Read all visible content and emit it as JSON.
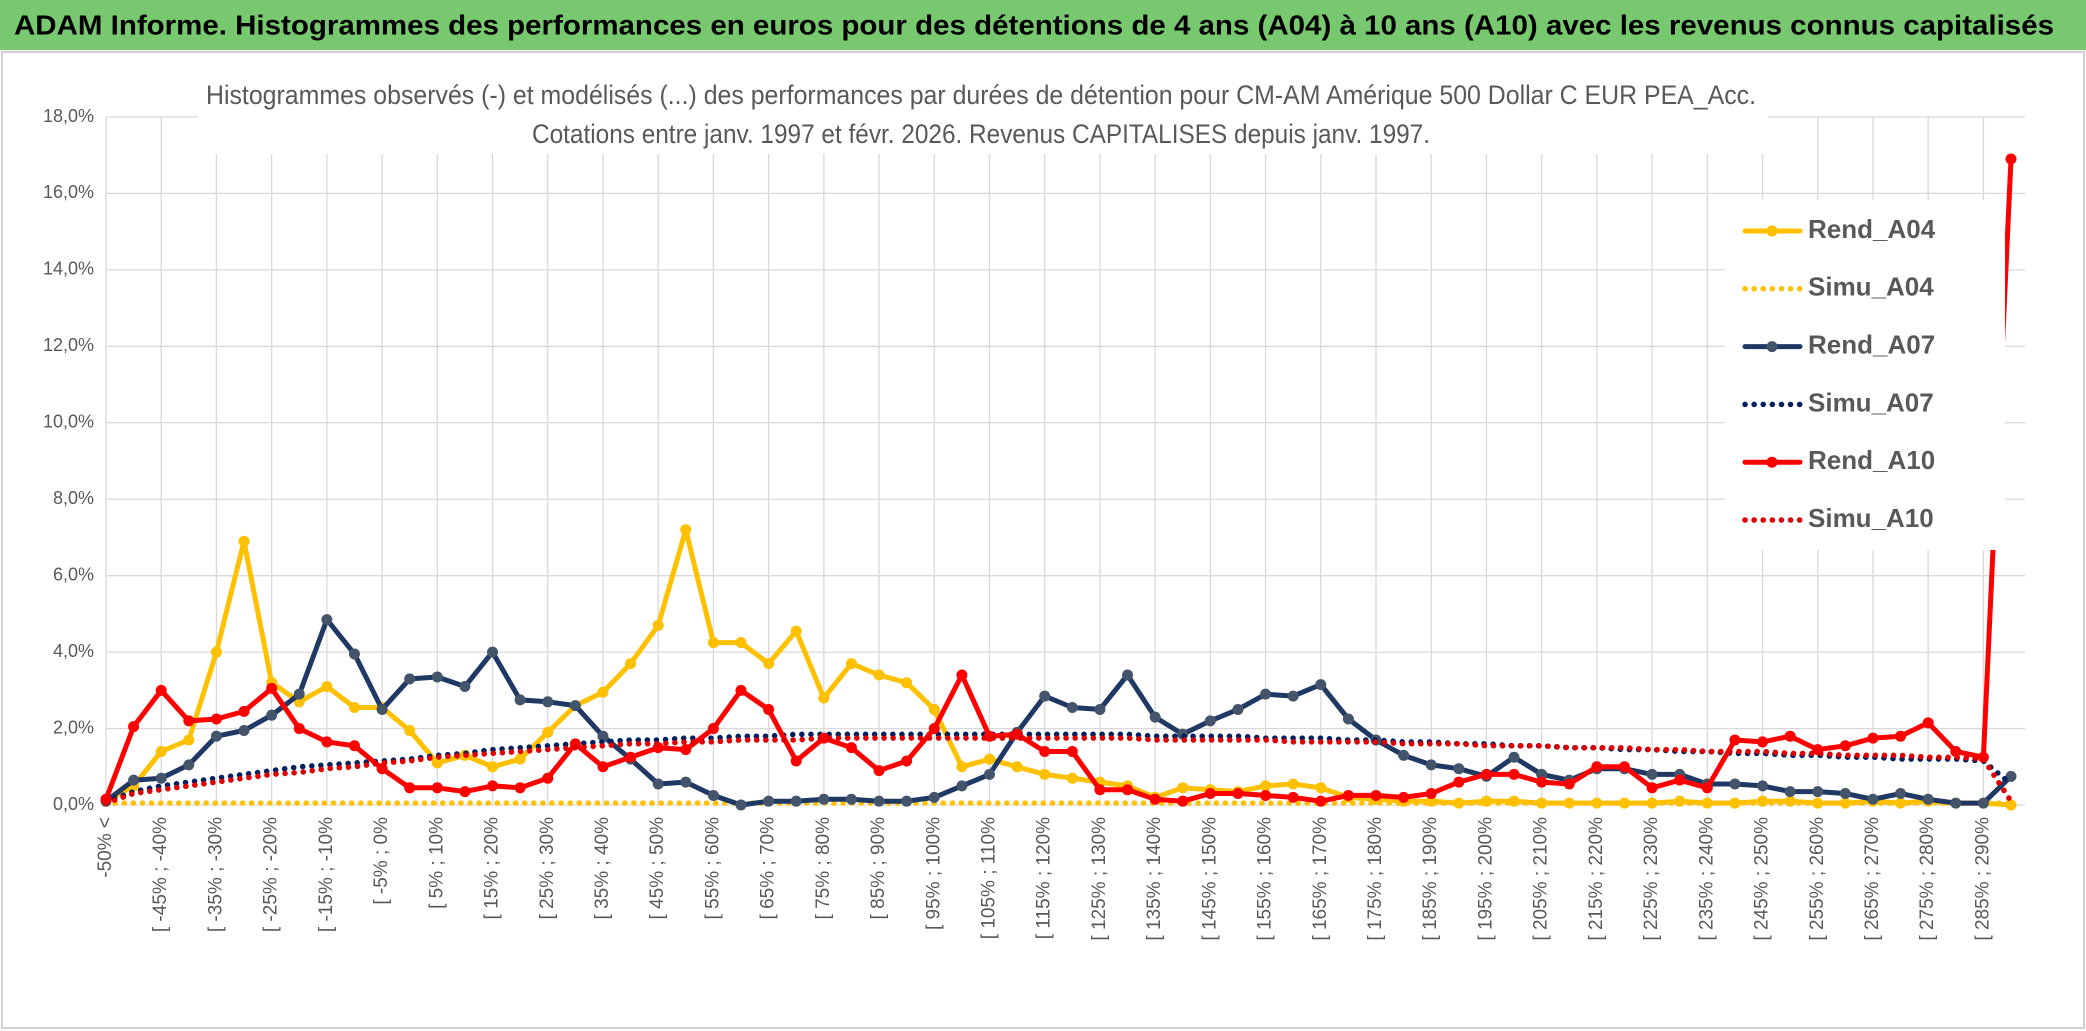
{
  "header": {
    "title": "ADAM Informe. Histogrammes des performances en euros pour des détentions de 4 ans (A04) à 10 ans (A10) avec les revenus connus capitalisés"
  },
  "chart_data": {
    "type": "line",
    "title": "Histogrammes observés (-) et modélisés (...) des performances par durées de détention pour CM-AM Amérique 500 Dollar C EUR PEA_Acc.",
    "subtitle": "Cotations entre janv. 1997 et févr. 2026. Revenus CAPITALISES depuis janv. 1997.",
    "categories": [
      "-50% <",
      null,
      "[ -45% ; -40%",
      null,
      "[ -35% ; -30%",
      null,
      "[ -25% ; -20%",
      null,
      "[ -15% ; -10%",
      null,
      "[ -5% ; 0%",
      null,
      "[ 5% ; 10%",
      null,
      "[ 15% ; 20%",
      null,
      "[ 25% ; 30%",
      null,
      "[ 35% ; 40%",
      null,
      "[ 45% ; 50%",
      null,
      "[ 55% ; 60%",
      null,
      "[ 65% ; 70%",
      null,
      "[ 75% ; 80%",
      null,
      "[ 85% ; 90%",
      null,
      "[ 95% ; 100%",
      null,
      "[ 105% ; 110%",
      null,
      "[ 115% ; 120%",
      null,
      "[ 125% ; 130%",
      null,
      "[ 135% ; 140%",
      null,
      "[ 145% ; 150%",
      null,
      "[ 155% ; 160%",
      null,
      "[ 165% ; 170%",
      null,
      "[ 175% ; 180%",
      null,
      "[ 185% ; 190%",
      null,
      "[ 195% ; 200%",
      null,
      "[ 205% ; 210%",
      null,
      "[ 215% ; 220%",
      null,
      "[ 225% ; 230%",
      null,
      "[ 235% ; 240%",
      null,
      "[ 245% ; 250%",
      null,
      "[ 255% ; 260%",
      null,
      "[ 265% ; 270%",
      null,
      "[ 275% ; 280%",
      null,
      "[ 285% ; 290%",
      null
    ],
    "series": [
      {
        "name": "Rend_A04",
        "color": "#ffc000",
        "dash": "solid",
        "markers": true,
        "values": [
          0.1,
          0.5,
          1.4,
          1.7,
          4.0,
          6.9,
          3.2,
          2.7,
          3.1,
          2.55,
          2.55,
          1.95,
          1.1,
          1.3,
          1.0,
          1.2,
          1.9,
          2.6,
          2.95,
          3.7,
          4.7,
          7.2,
          4.25,
          4.25,
          3.7,
          4.55,
          2.8,
          3.7,
          3.4,
          3.2,
          2.5,
          1.0,
          1.2,
          1.0,
          0.8,
          0.7,
          0.6,
          0.5,
          0.2,
          0.45,
          0.4,
          0.35,
          0.5,
          0.55,
          0.45,
          0.2,
          0.15,
          0.1,
          0.1,
          0.05,
          0.1,
          0.1,
          0.05,
          0.05,
          0.05,
          0.05,
          0.05,
          0.1,
          0.05,
          0.05,
          0.1,
          0.1,
          0.05,
          0.05,
          0.1,
          0.05,
          0.1,
          0.05,
          0.05,
          0
        ]
      },
      {
        "name": "Simu_A04",
        "color": "#ffc000",
        "dash": "dotted",
        "markers": false,
        "values": [
          0.05,
          0.05,
          0.05,
          0.05,
          0.05,
          0.05,
          0.05,
          0.05,
          0.05,
          0.05,
          0.05,
          0.05,
          0.05,
          0.05,
          0.05,
          0.05,
          0.05,
          0.05,
          0.05,
          0.05,
          0.05,
          0.05,
          0.05,
          0.05,
          0.05,
          0.05,
          0.05,
          0.05,
          0.05,
          0.05,
          0.05,
          0.05,
          0.05,
          0.05,
          0.05,
          0.05,
          0.05,
          0.05,
          0.05,
          0.05,
          0.05,
          0.05,
          0.05,
          0.05,
          0.05,
          0.05,
          0.05,
          0.05,
          0.05,
          0.05,
          0.05,
          0.05,
          0.05,
          0.05,
          0.05,
          0.05,
          0.05,
          0.05,
          0.05,
          0.05,
          0.05,
          0.05,
          0.05,
          0.05,
          0.05,
          0.05,
          0.05,
          0.05,
          0.05,
          0.05
        ]
      },
      {
        "name": "Rend_A07",
        "color": "#203864",
        "dash": "solid",
        "markers": true,
        "values": [
          0.1,
          0.65,
          0.7,
          1.05,
          1.8,
          1.95,
          2.35,
          2.9,
          4.85,
          3.95,
          2.5,
          3.3,
          3.35,
          3.1,
          4.0,
          2.75,
          2.7,
          2.6,
          1.8,
          1.2,
          0.55,
          0.6,
          0.25,
          0,
          0.1,
          0.1,
          0.15,
          0.15,
          0.1,
          0.1,
          0.2,
          0.5,
          0.8,
          1.9,
          2.85,
          2.55,
          2.5,
          3.4,
          2.3,
          1.85,
          2.2,
          2.5,
          2.9,
          2.85,
          3.15,
          2.25,
          1.7,
          1.3,
          1.05,
          0.95,
          0.75,
          1.25,
          0.8,
          0.65,
          0.95,
          0.95,
          0.8,
          0.8,
          0.55,
          0.55,
          0.5,
          0.35,
          0.35,
          0.3,
          0.15,
          0.3,
          0.15,
          0.05,
          0.05,
          0.75
        ]
      },
      {
        "name": "Simu_A07",
        "color": "#002060",
        "dash": "dotted",
        "markers": false,
        "values": [
          0.1,
          0.35,
          0.5,
          0.6,
          0.7,
          0.8,
          0.9,
          1.0,
          1.05,
          1.1,
          1.15,
          1.2,
          1.3,
          1.35,
          1.45,
          1.5,
          1.55,
          1.6,
          1.65,
          1.7,
          1.7,
          1.75,
          1.75,
          1.8,
          1.8,
          1.85,
          1.85,
          1.85,
          1.85,
          1.85,
          1.85,
          1.85,
          1.85,
          1.85,
          1.85,
          1.85,
          1.85,
          1.85,
          1.8,
          1.8,
          1.8,
          1.8,
          1.75,
          1.75,
          1.75,
          1.7,
          1.7,
          1.65,
          1.65,
          1.6,
          1.6,
          1.55,
          1.55,
          1.5,
          1.5,
          1.45,
          1.45,
          1.4,
          1.4,
          1.35,
          1.35,
          1.3,
          1.3,
          1.25,
          1.25,
          1.2,
          1.2,
          1.2,
          1.15,
          0.55
        ]
      },
      {
        "name": "Rend_A10",
        "color": "#ff0000",
        "dash": "solid",
        "markers": true,
        "values": [
          0.15,
          2.05,
          3.0,
          2.2,
          2.25,
          2.45,
          3.05,
          2.0,
          1.65,
          1.55,
          0.95,
          0.45,
          0.45,
          0.35,
          0.5,
          0.45,
          0.7,
          1.6,
          1.0,
          1.25,
          1.5,
          1.45,
          2.0,
          3.0,
          2.5,
          1.15,
          1.75,
          1.5,
          0.9,
          1.15,
          2.0,
          3.4,
          1.8,
          1.85,
          1.4,
          1.4,
          0.4,
          0.4,
          0.15,
          0.1,
          0.3,
          0.3,
          0.25,
          0.2,
          0.1,
          0.25,
          0.25,
          0.2,
          0.3,
          0.6,
          0.8,
          0.8,
          0.6,
          0.55,
          1.0,
          1.0,
          0.45,
          0.65,
          0.45,
          1.7,
          1.65,
          1.8,
          1.45,
          1.55,
          1.75,
          1.8,
          2.15,
          1.4,
          1.25,
          16.9
        ]
      },
      {
        "name": "Simu_A10",
        "color": "#e00000",
        "dash": "dotted",
        "markers": false,
        "values": [
          0.05,
          0.3,
          0.4,
          0.5,
          0.6,
          0.7,
          0.8,
          0.85,
          0.95,
          1.0,
          1.1,
          1.15,
          1.25,
          1.3,
          1.35,
          1.4,
          1.45,
          1.5,
          1.55,
          1.6,
          1.6,
          1.65,
          1.65,
          1.7,
          1.7,
          1.7,
          1.75,
          1.75,
          1.75,
          1.75,
          1.75,
          1.75,
          1.75,
          1.75,
          1.75,
          1.75,
          1.75,
          1.75,
          1.7,
          1.7,
          1.7,
          1.7,
          1.7,
          1.65,
          1.65,
          1.65,
          1.65,
          1.6,
          1.6,
          1.6,
          1.55,
          1.55,
          1.55,
          1.5,
          1.5,
          1.5,
          1.45,
          1.45,
          1.4,
          1.4,
          1.4,
          1.35,
          1.35,
          1.3,
          1.3,
          1.3,
          1.25,
          1.25,
          1.2,
          0.1
        ]
      }
    ],
    "ylim": [
      0,
      18
    ],
    "yticks": [
      {
        "value": 0,
        "label": "0,0%"
      },
      {
        "value": 2,
        "label": "2,0%"
      },
      {
        "value": 4,
        "label": "4,0%"
      },
      {
        "value": 6,
        "label": "6,0%"
      },
      {
        "value": 8,
        "label": "8,0%"
      },
      {
        "value": 10,
        "label": "10,0%"
      },
      {
        "value": 12,
        "label": "12,0%"
      },
      {
        "value": 14,
        "label": "14,0%"
      },
      {
        "value": 16,
        "label": "16,0%"
      },
      {
        "value": 18,
        "label": "18,0%"
      }
    ],
    "grid": true,
    "legend": "right"
  }
}
